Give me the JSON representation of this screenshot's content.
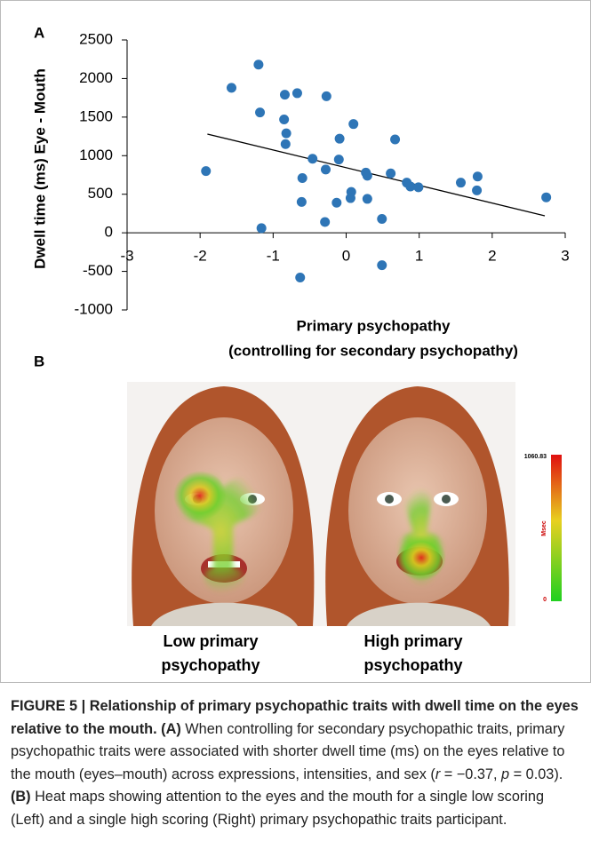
{
  "chart_data": {
    "type": "scatter",
    "panel": "A",
    "ylabel": "Dwell time (ms) Eye - Mouth",
    "xlabel": [
      "Primary psychopathy",
      "(controlling for secondary psychopathy)"
    ],
    "color": "#2e75b6",
    "x": [
      -1.92,
      -1.57,
      -1.2,
      -1.18,
      -1.16,
      -0.85,
      -0.84,
      -0.67,
      -0.82,
      -0.83,
      -0.6,
      -0.61,
      -0.63,
      -0.46,
      -0.27,
      -0.28,
      -0.29,
      -0.09,
      -0.1,
      -0.13,
      0.1,
      0.07,
      0.06,
      0.27,
      0.29,
      0.29,
      0.49,
      0.49,
      0.67,
      0.61,
      0.83,
      0.88,
      0.99,
      1.57,
      1.8,
      1.79,
      2.74
    ],
    "values": [
      800,
      1880,
      2180,
      1560,
      60,
      1470,
      1790,
      1810,
      1290,
      1150,
      710,
      400,
      -580,
      960,
      1770,
      820,
      140,
      1220,
      950,
      390,
      1410,
      530,
      450,
      780,
      740,
      440,
      180,
      -420,
      1210,
      770,
      650,
      600,
      590,
      650,
      730,
      550,
      460
    ],
    "trendline": {
      "color": "#000000",
      "x": [
        -1.9,
        2.72
      ],
      "y": [
        1280,
        220
      ]
    },
    "xlim": [
      -3,
      3
    ],
    "xticks": [
      -3,
      -2,
      -1,
      0,
      1,
      2,
      3
    ],
    "ylim": [
      -1000,
      2500
    ],
    "yticks": [
      -1000,
      -500,
      0,
      500,
      1000,
      1500,
      2000,
      2500
    ],
    "grid": false
  },
  "panel_b": {
    "label": "B",
    "images": [
      {
        "caption": "Low primary psychopathy"
      },
      {
        "caption": "High primary psychopathy"
      }
    ],
    "colorbar": {
      "max": 1060.83,
      "unit": "Msec",
      "min": 0
    }
  },
  "caption": [
    {
      "style": "bold",
      "text": "FIGURE 5 | Relationship of primary psychopathic traits with dwell time on the eyes relative to the mouth. (A)"
    },
    {
      "style": "normal",
      "text": " When controlling for secondary psychopathic traits, primary psychopathic traits were associated with shorter dwell time (ms) on the eyes relative to the mouth (eyes–mouth) across expressions, intensities, and sex ("
    },
    {
      "style": "italic",
      "text": "r"
    },
    {
      "style": "normal",
      "text": " = −0.37, "
    },
    {
      "style": "italic",
      "text": "p"
    },
    {
      "style": "normal",
      "text": " = 0.03). "
    },
    {
      "style": "bold",
      "text": "(B)"
    },
    {
      "style": "normal",
      "text": " Heat maps showing attention to the eyes and the mouth for a single low scoring (Left) and a single high scoring (Right) primary psychopathic traits participant."
    }
  ]
}
